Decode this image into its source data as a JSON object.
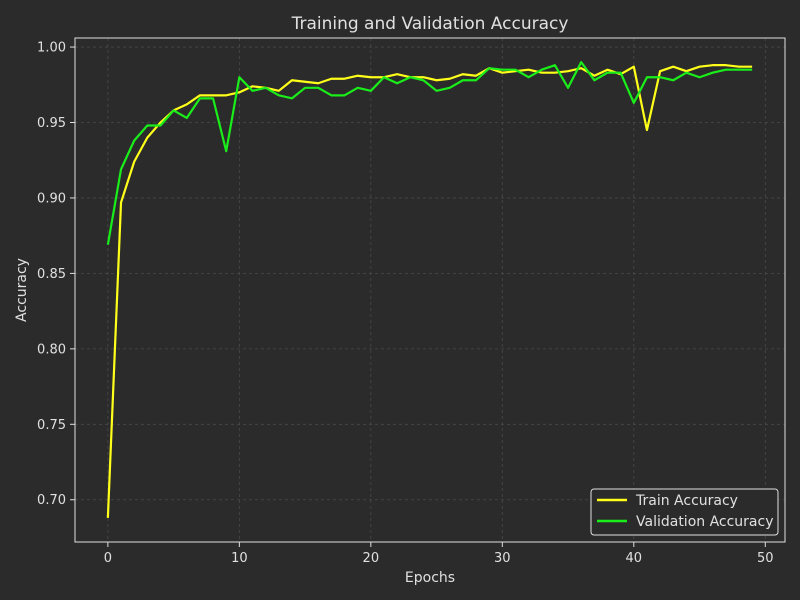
{
  "chart_data": {
    "type": "line",
    "title": "Training and Validation Accuracy",
    "xlabel": "Epochs",
    "ylabel": "Accuracy",
    "xlim": [
      -2.5,
      51.5
    ],
    "ylim": [
      0.672,
      1.006
    ],
    "xticks": [
      0,
      10,
      20,
      30,
      40,
      50
    ],
    "yticks": [
      0.7,
      0.75,
      0.8,
      0.85,
      0.9,
      0.95,
      1.0
    ],
    "grid": true,
    "legend_position": "bottom-right",
    "background": "#2b2b2b",
    "x": [
      0,
      1,
      2,
      3,
      4,
      5,
      6,
      7,
      8,
      9,
      10,
      11,
      12,
      13,
      14,
      15,
      16,
      17,
      18,
      19,
      20,
      21,
      22,
      23,
      24,
      25,
      26,
      27,
      28,
      29,
      30,
      31,
      32,
      33,
      34,
      35,
      36,
      37,
      38,
      39,
      40,
      41,
      42,
      43,
      44,
      45,
      46,
      47,
      48,
      49
    ],
    "series": [
      {
        "name": "Train Accuracy",
        "color": "#ffff1a",
        "values": [
          0.688,
          0.897,
          0.924,
          0.94,
          0.95,
          0.958,
          0.962,
          0.968,
          0.968,
          0.968,
          0.97,
          0.974,
          0.973,
          0.971,
          0.978,
          0.977,
          0.976,
          0.979,
          0.979,
          0.981,
          0.98,
          0.98,
          0.982,
          0.98,
          0.98,
          0.978,
          0.979,
          0.982,
          0.981,
          0.986,
          0.983,
          0.984,
          0.985,
          0.983,
          0.983,
          0.984,
          0.986,
          0.981,
          0.985,
          0.982,
          0.987,
          0.945,
          0.984,
          0.987,
          0.984,
          0.987,
          0.988,
          0.988,
          0.987,
          0.987
        ]
      },
      {
        "name": "Validation Accuracy",
        "color": "#1aee1a",
        "values": [
          0.869,
          0.919,
          0.938,
          0.948,
          0.948,
          0.958,
          0.953,
          0.966,
          0.966,
          0.931,
          0.98,
          0.971,
          0.973,
          0.968,
          0.966,
          0.973,
          0.973,
          0.968,
          0.968,
          0.973,
          0.971,
          0.98,
          0.976,
          0.98,
          0.978,
          0.971,
          0.973,
          0.978,
          0.978,
          0.986,
          0.985,
          0.985,
          0.98,
          0.985,
          0.988,
          0.973,
          0.99,
          0.978,
          0.983,
          0.983,
          0.963,
          0.98,
          0.98,
          0.978,
          0.983,
          0.98,
          0.983,
          0.985,
          0.985,
          0.985
        ]
      }
    ]
  }
}
